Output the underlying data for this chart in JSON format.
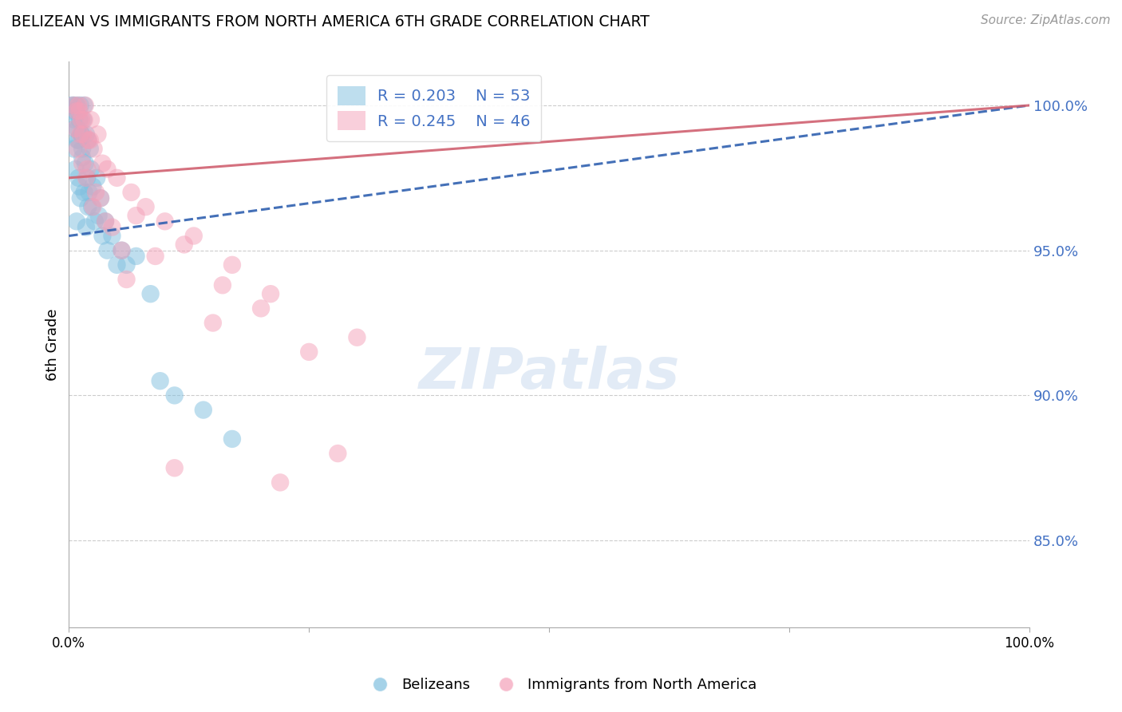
{
  "title": "BELIZEAN VS IMMIGRANTS FROM NORTH AMERICA 6TH GRADE CORRELATION CHART",
  "source": "Source: ZipAtlas.com",
  "ylabel": "6th Grade",
  "y_ticks": [
    85.0,
    90.0,
    95.0,
    100.0
  ],
  "y_tick_labels": [
    "85.0%",
    "90.0%",
    "95.0%",
    "100.0%"
  ],
  "legend_blue_label": "R = 0.203    N = 53",
  "legend_pink_label": "R = 0.245    N = 46",
  "legend_label_blue": "Belizeans",
  "legend_label_pink": "Immigrants from North America",
  "blue_color": "#7fbfdf",
  "pink_color": "#f4a0b8",
  "trend_blue_color": "#3060b0",
  "trend_pink_color": "#d06070",
  "blue_x": [
    0.3,
    0.4,
    0.5,
    0.6,
    0.7,
    0.8,
    0.9,
    1.0,
    1.1,
    1.2,
    1.3,
    1.4,
    1.5,
    1.6,
    1.7,
    1.8,
    1.9,
    2.0,
    2.1,
    2.2,
    2.3,
    2.4,
    2.5,
    2.7,
    2.9,
    3.1,
    3.3,
    3.5,
    3.8,
    4.0,
    4.5,
    5.0,
    5.5,
    6.0,
    7.0,
    8.5,
    9.5,
    11.0,
    14.0,
    17.0,
    1.0,
    1.2,
    1.4,
    1.6,
    1.8,
    2.0,
    0.5,
    0.6,
    0.7,
    0.8,
    0.9,
    1.1,
    1.3
  ],
  "blue_y": [
    100.0,
    99.8,
    100.0,
    99.5,
    99.8,
    100.0,
    99.2,
    98.8,
    99.5,
    100.0,
    99.0,
    98.5,
    99.5,
    100.0,
    98.0,
    99.0,
    97.5,
    98.8,
    97.0,
    98.5,
    97.8,
    96.5,
    97.2,
    96.0,
    97.5,
    96.2,
    96.8,
    95.5,
    96.0,
    95.0,
    95.5,
    94.5,
    95.0,
    94.5,
    94.8,
    93.5,
    90.5,
    90.0,
    89.5,
    88.5,
    97.5,
    96.8,
    98.2,
    97.0,
    95.8,
    96.5,
    98.5,
    99.2,
    97.8,
    96.0,
    98.8,
    97.2,
    99.0
  ],
  "pink_x": [
    0.5,
    0.8,
    1.0,
    1.3,
    1.5,
    1.7,
    2.0,
    2.3,
    2.6,
    3.0,
    3.5,
    4.0,
    5.0,
    6.5,
    8.0,
    10.0,
    13.0,
    17.0,
    21.0,
    30.0,
    0.7,
    0.9,
    1.1,
    1.4,
    1.6,
    1.9,
    2.2,
    2.8,
    3.3,
    4.5,
    5.5,
    7.0,
    9.0,
    12.0,
    16.0,
    20.0,
    25.0,
    28.0,
    1.2,
    1.8,
    2.5,
    3.8,
    6.0,
    11.0,
    15.0,
    22.0
  ],
  "pink_y": [
    100.0,
    99.8,
    100.0,
    99.5,
    99.0,
    100.0,
    98.8,
    99.5,
    98.5,
    99.0,
    98.0,
    97.8,
    97.5,
    97.0,
    96.5,
    96.0,
    95.5,
    94.5,
    93.5,
    92.0,
    99.2,
    98.5,
    99.8,
    98.0,
    99.5,
    97.8,
    98.8,
    97.0,
    96.8,
    95.8,
    95.0,
    96.2,
    94.8,
    95.2,
    93.8,
    93.0,
    91.5,
    88.0,
    99.0,
    97.5,
    96.5,
    96.0,
    94.0,
    87.5,
    92.5,
    87.0
  ],
  "blue_trend_x0": 0.0,
  "blue_trend_y0": 95.5,
  "blue_trend_x1": 100.0,
  "blue_trend_y1": 100.0,
  "pink_trend_x0": 0.0,
  "pink_trend_y0": 97.5,
  "pink_trend_x1": 100.0,
  "pink_trend_y1": 100.0,
  "xlim": [
    0,
    100
  ],
  "ylim": [
    82.0,
    101.5
  ],
  "watermark": "ZIPatlas"
}
